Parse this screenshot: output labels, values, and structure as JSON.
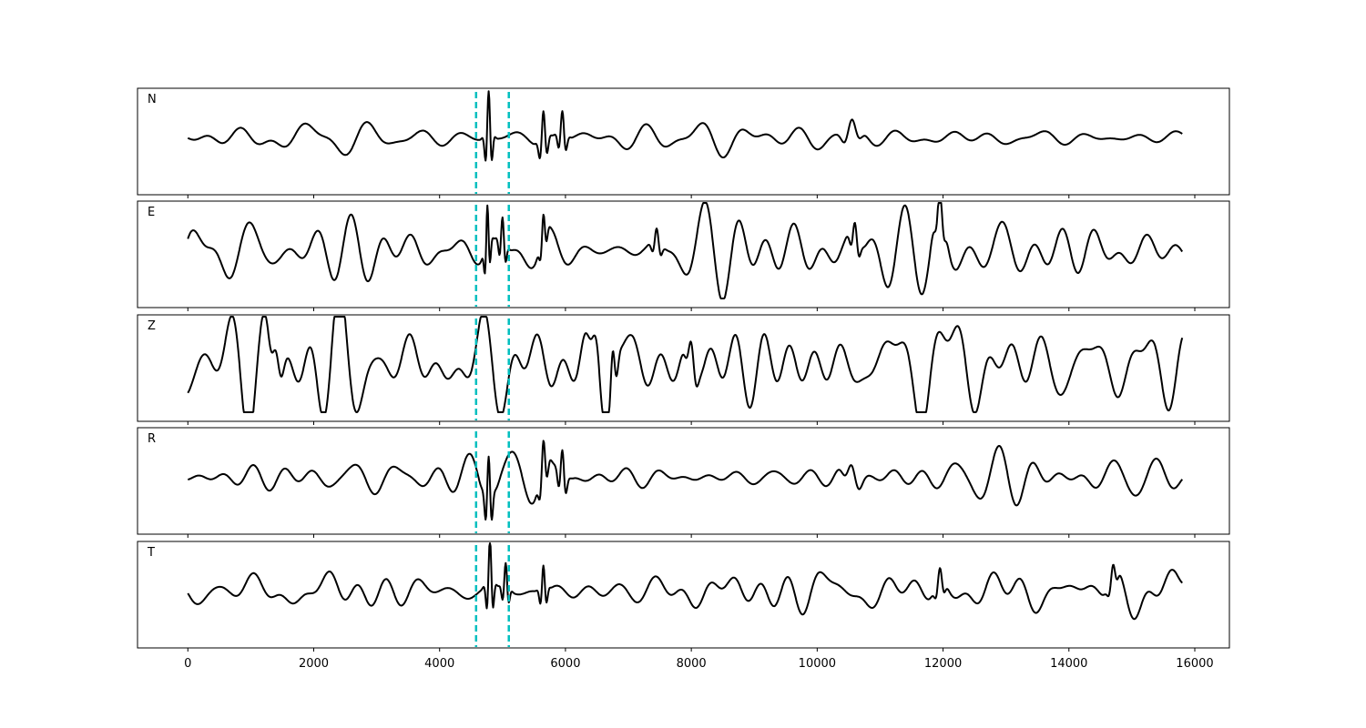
{
  "chart_data": {
    "type": "line",
    "title": "",
    "xlabel": "",
    "ylabel": "",
    "xlim": [
      -800,
      16550
    ],
    "xticks": [
      0,
      2000,
      4000,
      6000,
      8000,
      10000,
      12000,
      14000,
      16000
    ],
    "x_start": 0,
    "x_end": 15800,
    "picks": [
      4580,
      5100
    ],
    "line_color": "#000000",
    "pick_color": "#00bfbf",
    "grid": false,
    "series": [
      {
        "name": "N",
        "amplitude": 0.15,
        "events": [
          {
            "x": 4780,
            "amp": 1.0,
            "width": 60
          },
          {
            "x": 5650,
            "amp": 0.65,
            "width": 70
          },
          {
            "x": 5950,
            "amp": 0.55,
            "width": 70
          },
          {
            "x": 10550,
            "amp": 0.3,
            "width": 150
          }
        ]
      },
      {
        "name": "E",
        "amplitude": 0.3,
        "events": [
          {
            "x": 4760,
            "amp": 0.9,
            "width": 50
          },
          {
            "x": 5000,
            "amp": 0.6,
            "width": 60
          },
          {
            "x": 5650,
            "amp": 0.5,
            "width": 60
          },
          {
            "x": 7450,
            "amp": 0.35,
            "width": 80
          },
          {
            "x": 10600,
            "amp": 0.4,
            "width": 80
          },
          {
            "x": 11950,
            "amp": 0.5,
            "width": 80
          }
        ]
      },
      {
        "name": "Z",
        "amplitude": 0.45,
        "events": [
          {
            "x": 6500,
            "amp": 0.6,
            "width": 150
          },
          {
            "x": 6750,
            "amp": 0.6,
            "width": 80
          },
          {
            "x": 1400,
            "amp": 0.4,
            "width": 120
          },
          {
            "x": 8000,
            "amp": 0.4,
            "width": 100
          }
        ]
      },
      {
        "name": "R",
        "amplitude": 0.15,
        "events": [
          {
            "x": 4780,
            "amp": 0.95,
            "width": 60
          },
          {
            "x": 5650,
            "amp": 0.65,
            "width": 70
          },
          {
            "x": 5950,
            "amp": 0.6,
            "width": 70
          },
          {
            "x": 10550,
            "amp": 0.3,
            "width": 150
          }
        ]
      },
      {
        "name": "T",
        "amplitude": 0.18,
        "events": [
          {
            "x": 4800,
            "amp": 1.0,
            "width": 60
          },
          {
            "x": 5050,
            "amp": 0.55,
            "width": 60
          },
          {
            "x": 5650,
            "amp": 0.55,
            "width": 60
          },
          {
            "x": 11950,
            "amp": 0.35,
            "width": 80
          },
          {
            "x": 14700,
            "amp": 0.3,
            "width": 80
          }
        ]
      }
    ]
  }
}
